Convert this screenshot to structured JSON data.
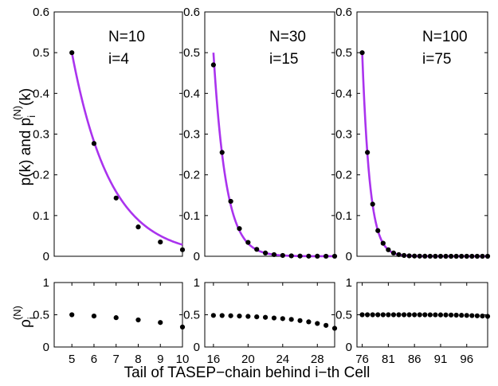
{
  "figure": {
    "xlabel": "Tail of TASEP−chain behind i−th Cell",
    "ylabel_top": {
      "p": "p(k) and p",
      "sub": "i",
      "sup": "(N)",
      "tail": "(k)"
    },
    "ylabel_bottom": {
      "rho": "ρ",
      "sub": "i",
      "sup": "(N)"
    }
  },
  "chart_data": [
    {
      "type": "scatter",
      "panel": "top-left",
      "annotations": [
        "N=10",
        "i=4"
      ],
      "ylim": [
        0,
        0.6
      ],
      "yticks": [
        "0",
        "0.1",
        "0.2",
        "0.3",
        "0.4",
        "0.5",
        "0.6"
      ],
      "xlim": [
        4.2,
        10
      ],
      "x": [
        5,
        6,
        7,
        8,
        9,
        10
      ],
      "y": [
        0.5,
        0.277,
        0.143,
        0.072,
        0.035,
        0.016
      ],
      "curve": {
        "color": "#aa33ee",
        "a": 0.5,
        "b": 0.5743,
        "x0": 5,
        "x_end": 10
      }
    },
    {
      "type": "scatter",
      "panel": "top-middle",
      "annotations": [
        "N=30",
        "i=15"
      ],
      "ylim": [
        0,
        0.6
      ],
      "yticks": [
        "0",
        "0.1",
        "0.2",
        "0.3",
        "0.4",
        "0.5",
        "0.6"
      ],
      "xlim": [
        15,
        30
      ],
      "x": [
        16,
        17,
        18,
        19,
        20,
        21,
        22,
        23,
        24,
        25,
        26,
        27,
        28,
        29,
        30
      ],
      "y": [
        0.47,
        0.255,
        0.135,
        0.068,
        0.034,
        0.017,
        0.008,
        0.004,
        0.002,
        0.001,
        0.0005,
        0.0003,
        0.0002,
        0.0001,
        0.0001
      ],
      "curve": {
        "color": "#aa33ee",
        "a": 0.5,
        "b": 0.69,
        "x0": 16,
        "x_end": 30
      }
    },
    {
      "type": "scatter",
      "panel": "top-right",
      "annotations": [
        "N=100",
        "i=75"
      ],
      "ylim": [
        0,
        0.6
      ],
      "yticks": [
        "0",
        "0.1",
        "0.2",
        "0.3",
        "0.4",
        "0.5",
        "0.6"
      ],
      "xlim": [
        75,
        100
      ],
      "x": [
        76,
        77,
        78,
        79,
        80,
        81,
        82,
        83,
        84,
        85,
        86,
        87,
        88,
        89,
        90,
        91,
        92,
        93,
        94,
        95,
        96,
        97,
        98,
        99,
        100
      ],
      "y": [
        0.5,
        0.255,
        0.128,
        0.063,
        0.032,
        0.016,
        0.008,
        0.004,
        0.002,
        0.001,
        0.0005,
        0.0003,
        0.0002,
        0.0001,
        0,
        0,
        0,
        0,
        0,
        0,
        0,
        0,
        0,
        0,
        0
      ],
      "curve": {
        "color": "#aa33ee",
        "a": 0.5,
        "b": 0.69,
        "x0": 76,
        "x_end": 100
      }
    },
    {
      "type": "scatter",
      "panel": "bottom-left",
      "ylim": [
        0,
        1
      ],
      "yticks": [
        "0",
        "0.5",
        "1"
      ],
      "xlim": [
        4.2,
        10
      ],
      "xticks": [
        5,
        6,
        7,
        8,
        9,
        10
      ],
      "xtick_labels": [
        "5",
        "6",
        "7",
        "8",
        "9",
        "10"
      ],
      "x": [
        5,
        6,
        7,
        8,
        9,
        10
      ],
      "y": [
        0.5,
        0.48,
        0.455,
        0.42,
        0.38,
        0.31
      ]
    },
    {
      "type": "scatter",
      "panel": "bottom-middle",
      "ylim": [
        0,
        1
      ],
      "yticks": [
        "0",
        "0.5",
        "1"
      ],
      "xlim": [
        15,
        30
      ],
      "xticks": [
        16,
        20,
        24,
        28
      ],
      "xtick_labels": [
        "16",
        "20",
        "24",
        "28"
      ],
      "x": [
        16,
        17,
        18,
        19,
        20,
        21,
        22,
        23,
        24,
        25,
        26,
        27,
        28,
        29,
        30
      ],
      "y": [
        0.49,
        0.488,
        0.485,
        0.48,
        0.475,
        0.468,
        0.46,
        0.45,
        0.44,
        0.428,
        0.41,
        0.39,
        0.365,
        0.335,
        0.29
      ]
    },
    {
      "type": "scatter",
      "panel": "bottom-right",
      "ylim": [
        0,
        1
      ],
      "yticks": [
        "0",
        "0.5",
        "1"
      ],
      "xlim": [
        75,
        100
      ],
      "xticks": [
        76,
        81,
        86,
        91,
        96
      ],
      "xtick_labels": [
        "76",
        "81",
        "86",
        "91",
        "96"
      ],
      "x": [
        76,
        77,
        78,
        79,
        80,
        81,
        82,
        83,
        84,
        85,
        86,
        87,
        88,
        89,
        90,
        91,
        92,
        93,
        94,
        95,
        96,
        97,
        98,
        99,
        100
      ],
      "y": [
        0.5,
        0.5,
        0.5,
        0.5,
        0.5,
        0.5,
        0.5,
        0.5,
        0.5,
        0.5,
        0.5,
        0.5,
        0.5,
        0.499,
        0.499,
        0.498,
        0.497,
        0.496,
        0.494,
        0.492,
        0.49,
        0.487,
        0.484,
        0.48,
        0.475
      ]
    }
  ]
}
